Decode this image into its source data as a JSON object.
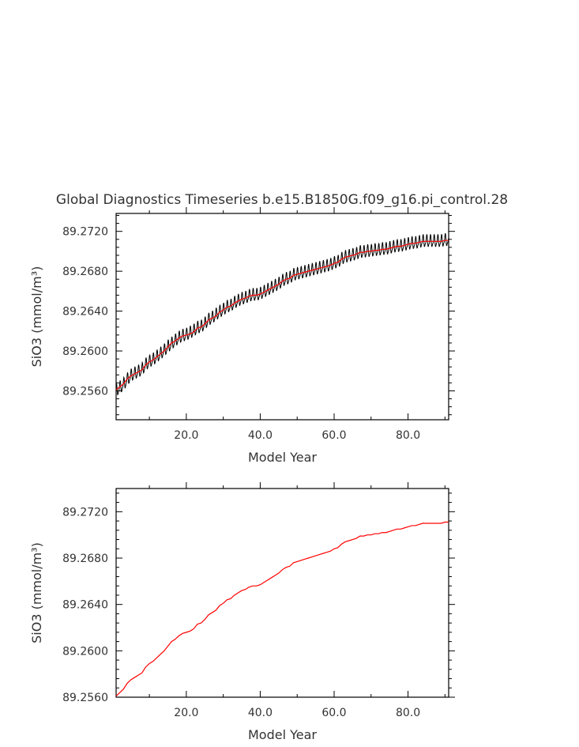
{
  "chart_data": [
    {
      "type": "line",
      "title": "Global Diagnostics Timeseries b.e15.B1850G.f09_g16.pi_control.28",
      "xlabel": "Model Year",
      "ylabel": "SiO3 (mmol/m³)",
      "xlim": [
        1,
        91
      ],
      "ylim": [
        89.2531,
        89.2738
      ],
      "x_ticks": [
        "20.0",
        "40.0",
        "60.0",
        "80.0"
      ],
      "y_ticks": [
        "89.2560",
        "89.2600",
        "89.2640",
        "89.2680",
        "89.2720"
      ],
      "grid": false,
      "legend": "none",
      "series": [
        {
          "style": "monthly",
          "color": "#000000",
          "x": [
            1,
            2,
            3,
            4,
            5,
            6,
            7,
            8,
            9,
            10,
            11,
            12,
            13,
            14,
            15,
            16,
            17,
            18,
            19,
            20,
            21,
            22,
            23,
            24,
            25,
            26,
            27,
            28,
            29,
            30,
            31,
            32,
            33,
            34,
            35,
            36,
            37,
            38,
            39,
            40,
            41,
            42,
            43,
            44,
            45,
            46,
            47,
            48,
            49,
            50,
            51,
            52,
            53,
            54,
            55,
            56,
            57,
            58,
            59,
            60,
            61,
            62,
            63,
            64,
            65,
            66,
            67,
            68,
            69,
            70,
            71,
            72,
            73,
            74,
            75,
            76,
            77,
            78,
            79,
            80,
            81,
            82,
            83,
            84,
            85,
            86,
            87,
            88,
            89,
            90,
            91
          ],
          "values": [
            89.256,
            89.2563,
            89.2566,
            89.2571,
            89.2575,
            89.2577,
            89.2579,
            89.2581,
            89.2586,
            89.2589,
            89.2591,
            89.2594,
            89.2597,
            89.26,
            89.2604,
            89.2607,
            89.261,
            89.2613,
            89.2615,
            89.2616,
            89.2618,
            89.262,
            89.2623,
            89.2624,
            89.2627,
            89.2631,
            89.2633,
            89.2636,
            89.2639,
            89.2641,
            89.2644,
            89.2645,
            89.2648,
            89.265,
            89.2652,
            89.2653,
            89.2655,
            89.2656,
            89.2656,
            89.2657,
            89.2659,
            89.2661,
            89.2663,
            89.2665,
            89.2667,
            89.267,
            89.2672,
            89.2673,
            89.2676,
            89.2677,
            89.2678,
            89.2679,
            89.268,
            89.2681,
            89.2682,
            89.2683,
            89.2684,
            89.2685,
            89.2686,
            89.2688,
            89.2689,
            89.2692,
            89.2694,
            89.2695,
            89.2696,
            89.2697,
            89.2699,
            89.2699,
            89.27,
            89.27,
            89.2701,
            89.2701,
            89.2702,
            89.2702,
            89.2703,
            89.2704,
            89.2705,
            89.2705,
            89.2706,
            89.2707,
            89.2708,
            89.2708,
            89.2709,
            89.271,
            89.271,
            89.271,
            89.271,
            89.271,
            89.271,
            89.2711,
            89.2711
          ]
        },
        {
          "style": "annual",
          "color": "#ff0000",
          "x": [
            1,
            2,
            3,
            4,
            5,
            6,
            7,
            8,
            9,
            10,
            11,
            12,
            13,
            14,
            15,
            16,
            17,
            18,
            19,
            20,
            21,
            22,
            23,
            24,
            25,
            26,
            27,
            28,
            29,
            30,
            31,
            32,
            33,
            34,
            35,
            36,
            37,
            38,
            39,
            40,
            41,
            42,
            43,
            44,
            45,
            46,
            47,
            48,
            49,
            50,
            51,
            52,
            53,
            54,
            55,
            56,
            57,
            58,
            59,
            60,
            61,
            62,
            63,
            64,
            65,
            66,
            67,
            68,
            69,
            70,
            71,
            72,
            73,
            74,
            75,
            76,
            77,
            78,
            79,
            80,
            81,
            82,
            83,
            84,
            85,
            86,
            87,
            88,
            89,
            90,
            91
          ],
          "values": [
            89.2561,
            89.2564,
            89.2567,
            89.2572,
            89.2575,
            89.2577,
            89.2579,
            89.2581,
            89.2586,
            89.2589,
            89.2591,
            89.2594,
            89.2597,
            89.26,
            89.2604,
            89.2608,
            89.261,
            89.2613,
            89.2615,
            89.2616,
            89.2617,
            89.2619,
            89.2623,
            89.2624,
            89.2627,
            89.2631,
            89.2633,
            89.2635,
            89.2639,
            89.2641,
            89.2644,
            89.2645,
            89.2648,
            89.265,
            89.2652,
            89.2653,
            89.2655,
            89.2656,
            89.2656,
            89.2657,
            89.2659,
            89.2661,
            89.2663,
            89.2665,
            89.2667,
            89.267,
            89.2672,
            89.2673,
            89.2676,
            89.2677,
            89.2678,
            89.2679,
            89.268,
            89.2681,
            89.2682,
            89.2683,
            89.2684,
            89.2685,
            89.2686,
            89.2688,
            89.2689,
            89.2692,
            89.2694,
            89.2695,
            89.2696,
            89.2697,
            89.2699,
            89.2699,
            89.27,
            89.27,
            89.2701,
            89.2701,
            89.2702,
            89.2702,
            89.2703,
            89.2704,
            89.2705,
            89.2705,
            89.2706,
            89.2707,
            89.2708,
            89.2708,
            89.2709,
            89.271,
            89.271,
            89.271,
            89.271,
            89.271,
            89.271,
            89.2711,
            89.2711
          ]
        }
      ]
    },
    {
      "type": "line",
      "xlabel": "Model Year",
      "ylabel": "SiO3 (mmol/m³)",
      "xlim": [
        1,
        91
      ],
      "ylim": [
        89.256,
        89.274
      ],
      "x_ticks": [
        "20.0",
        "40.0",
        "60.0",
        "80.0"
      ],
      "y_ticks": [
        "89.2560",
        "89.2600",
        "89.2640",
        "89.2680",
        "89.2720"
      ],
      "grid": false,
      "legend": "none",
      "series": [
        {
          "style": "annual",
          "color": "#ff0000",
          "x": [
            1,
            2,
            3,
            4,
            5,
            6,
            7,
            8,
            9,
            10,
            11,
            12,
            13,
            14,
            15,
            16,
            17,
            18,
            19,
            20,
            21,
            22,
            23,
            24,
            25,
            26,
            27,
            28,
            29,
            30,
            31,
            32,
            33,
            34,
            35,
            36,
            37,
            38,
            39,
            40,
            41,
            42,
            43,
            44,
            45,
            46,
            47,
            48,
            49,
            50,
            51,
            52,
            53,
            54,
            55,
            56,
            57,
            58,
            59,
            60,
            61,
            62,
            63,
            64,
            65,
            66,
            67,
            68,
            69,
            70,
            71,
            72,
            73,
            74,
            75,
            76,
            77,
            78,
            79,
            80,
            81,
            82,
            83,
            84,
            85,
            86,
            87,
            88,
            89,
            90,
            91
          ],
          "values": [
            89.2561,
            89.2564,
            89.2567,
            89.2572,
            89.2575,
            89.2577,
            89.2579,
            89.2581,
            89.2586,
            89.2589,
            89.2591,
            89.2594,
            89.2597,
            89.26,
            89.2604,
            89.2608,
            89.261,
            89.2613,
            89.2615,
            89.2616,
            89.2617,
            89.2619,
            89.2623,
            89.2624,
            89.2627,
            89.2631,
            89.2633,
            89.2635,
            89.2639,
            89.2641,
            89.2644,
            89.2645,
            89.2648,
            89.265,
            89.2652,
            89.2653,
            89.2655,
            89.2656,
            89.2656,
            89.2657,
            89.2659,
            89.2661,
            89.2663,
            89.2665,
            89.2667,
            89.267,
            89.2672,
            89.2673,
            89.2676,
            89.2677,
            89.2678,
            89.2679,
            89.268,
            89.2681,
            89.2682,
            89.2683,
            89.2684,
            89.2685,
            89.2686,
            89.2688,
            89.2689,
            89.2692,
            89.2694,
            89.2695,
            89.2696,
            89.2697,
            89.2699,
            89.2699,
            89.27,
            89.27,
            89.2701,
            89.2701,
            89.2702,
            89.2702,
            89.2703,
            89.2704,
            89.2705,
            89.2705,
            89.2706,
            89.2707,
            89.2708,
            89.2708,
            89.2709,
            89.271,
            89.271,
            89.271,
            89.271,
            89.271,
            89.271,
            89.2711,
            89.2711
          ]
        }
      ]
    }
  ]
}
